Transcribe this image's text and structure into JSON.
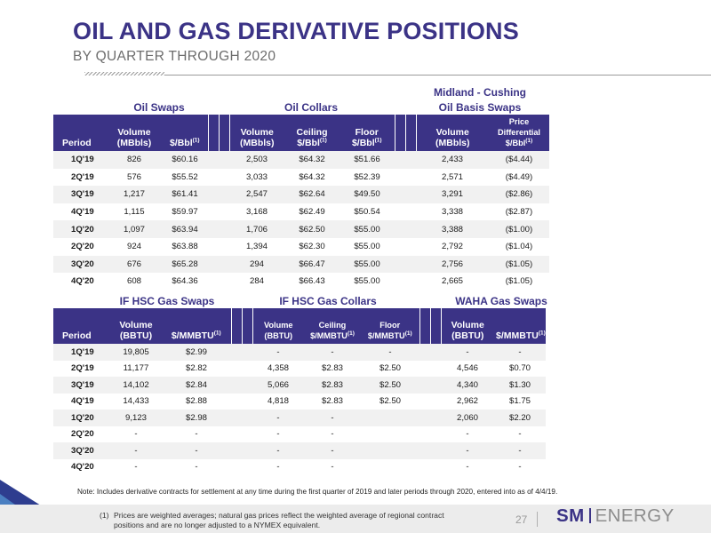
{
  "header": {
    "title": "OIL AND GAS DERIVATIVE POSITIONS",
    "subtitle": "BY QUARTER THROUGH 2020"
  },
  "oil_table": {
    "section_titles": {
      "oil_swaps": "Oil Swaps",
      "oil_collars": "Oil Collars",
      "basis_line1": "Midland - Cushing",
      "basis_line2": "Oil Basis Swaps"
    },
    "columns": {
      "period": "Period",
      "swap_volume_1": "Volume",
      "swap_volume_2": "(MBbls)",
      "swap_price": "$/Bbl",
      "collar_volume_1": "Volume",
      "collar_volume_2": "(MBbls)",
      "ceiling_1": "Ceiling",
      "ceiling_2": "$/Bbl",
      "floor_1": "Floor",
      "floor_2": "$/Bbl",
      "basis_volume_1": "Volume",
      "basis_volume_2": "(MBbls)",
      "diff_1": "Price",
      "diff_2": "Differential",
      "diff_3": "$/Bbl",
      "sup": "(1)"
    },
    "rows": [
      {
        "period": "1Q'19",
        "swap_vol": "826",
        "swap_price": "$60.16",
        "collar_vol": "2,503",
        "ceiling": "$64.32",
        "floor": "$51.66",
        "basis_vol": "2,433",
        "diff": "($4.44)"
      },
      {
        "period": "2Q'19",
        "swap_vol": "576",
        "swap_price": "$55.52",
        "collar_vol": "3,033",
        "ceiling": "$64.32",
        "floor": "$52.39",
        "basis_vol": "2,571",
        "diff": "($4.49)"
      },
      {
        "period": "3Q'19",
        "swap_vol": "1,217",
        "swap_price": "$61.41",
        "collar_vol": "2,547",
        "ceiling": "$62.64",
        "floor": "$49.50",
        "basis_vol": "3,291",
        "diff": "($2.86)"
      },
      {
        "period": "4Q'19",
        "swap_vol": "1,115",
        "swap_price": "$59.97",
        "collar_vol": "3,168",
        "ceiling": "$62.49",
        "floor": "$50.54",
        "basis_vol": "3,338",
        "diff": "($2.87)"
      },
      {
        "period": "1Q'20",
        "swap_vol": "1,097",
        "swap_price": "$63.94",
        "collar_vol": "1,706",
        "ceiling": "$62.50",
        "floor": "$55.00",
        "basis_vol": "3,388",
        "diff": "($1.00)"
      },
      {
        "period": "2Q'20",
        "swap_vol": "924",
        "swap_price": "$63.88",
        "collar_vol": "1,394",
        "ceiling": "$62.30",
        "floor": "$55.00",
        "basis_vol": "2,792",
        "diff": "($1.04)"
      },
      {
        "period": "3Q'20",
        "swap_vol": "676",
        "swap_price": "$65.28",
        "collar_vol": "294",
        "ceiling": "$66.47",
        "floor": "$55.00",
        "basis_vol": "2,756",
        "diff": "($1.05)"
      },
      {
        "period": "4Q'20",
        "swap_vol": "608",
        "swap_price": "$64.36",
        "collar_vol": "284",
        "ceiling": "$66.43",
        "floor": "$55.00",
        "basis_vol": "2,665",
        "diff": "($1.05)"
      }
    ]
  },
  "gas_table": {
    "section_titles": {
      "if_hsc_swaps": "IF HSC Gas Swaps",
      "if_hsc_collars": "IF HSC Gas Collars",
      "waha_swaps": "WAHA Gas Swaps"
    },
    "columns": {
      "period": "Period",
      "swap_volume_1": "Volume",
      "swap_volume_2": "(BBTU)",
      "swap_price": "$/MMBTU",
      "collar_volume_1": "Volume",
      "collar_volume_2": "(BBTU)",
      "ceiling_1": "Ceiling",
      "ceiling_2": "$/MMBTU",
      "floor_1": "Floor",
      "floor_2": "$/MMBTU",
      "waha_volume_1": "Volume",
      "waha_volume_2": "(BBTU)",
      "waha_price": "$/MMBTU",
      "sup": "(1)"
    },
    "rows": [
      {
        "period": "1Q'19",
        "swap_vol": "19,805",
        "swap_price": "$2.99",
        "collar_vol": "-",
        "ceiling": "-",
        "floor": "-",
        "waha_vol": "-",
        "waha_price": "-"
      },
      {
        "period": "2Q'19",
        "swap_vol": "11,177",
        "swap_price": "$2.82",
        "collar_vol": "4,358",
        "ceiling": "$2.83",
        "floor": "$2.50",
        "waha_vol": "4,546",
        "waha_price": "$0.70"
      },
      {
        "period": "3Q'19",
        "swap_vol": "14,102",
        "swap_price": "$2.84",
        "collar_vol": "5,066",
        "ceiling": "$2.83",
        "floor": "$2.50",
        "waha_vol": "4,340",
        "waha_price": "$1.30"
      },
      {
        "period": "4Q'19",
        "swap_vol": "14,433",
        "swap_price": "$2.88",
        "collar_vol": "4,818",
        "ceiling": "$2.83",
        "floor": "$2.50",
        "waha_vol": "2,962",
        "waha_price": "$1.75"
      },
      {
        "period": "1Q'20",
        "swap_vol": "9,123",
        "swap_price": "$2.98",
        "collar_vol": "-",
        "ceiling": "-",
        "floor": "",
        "waha_vol": "2,060",
        "waha_price": "$2.20"
      },
      {
        "period": "2Q'20",
        "swap_vol": "-",
        "swap_price": "-",
        "collar_vol": "-",
        "ceiling": "-",
        "floor": "",
        "waha_vol": "-",
        "waha_price": "-"
      },
      {
        "period": "3Q'20",
        "swap_vol": "-",
        "swap_price": "-",
        "collar_vol": "-",
        "ceiling": "-",
        "floor": "",
        "waha_vol": "-",
        "waha_price": "-"
      },
      {
        "period": "4Q'20",
        "swap_vol": "-",
        "swap_price": "-",
        "collar_vol": "-",
        "ceiling": "-",
        "floor": "",
        "waha_vol": "-",
        "waha_price": "-"
      }
    ]
  },
  "note": "Note: Includes derivative contracts for settlement at any time during the first quarter of 2019 and later periods through 2020, entered into as of 4/4/19.",
  "footnote": {
    "number": "(1)",
    "line1": "Prices are weighted averages; natural gas prices reflect the weighted average of regional contract",
    "line2": "positions and are no longer adjusted to a NYMEX equivalent."
  },
  "footer": {
    "page_number": "27",
    "logo_sm": "SM",
    "logo_energy": "ENERGY"
  },
  "colors": {
    "brand_purple": "#3b3386",
    "row_shade": "#f1f1f1"
  }
}
